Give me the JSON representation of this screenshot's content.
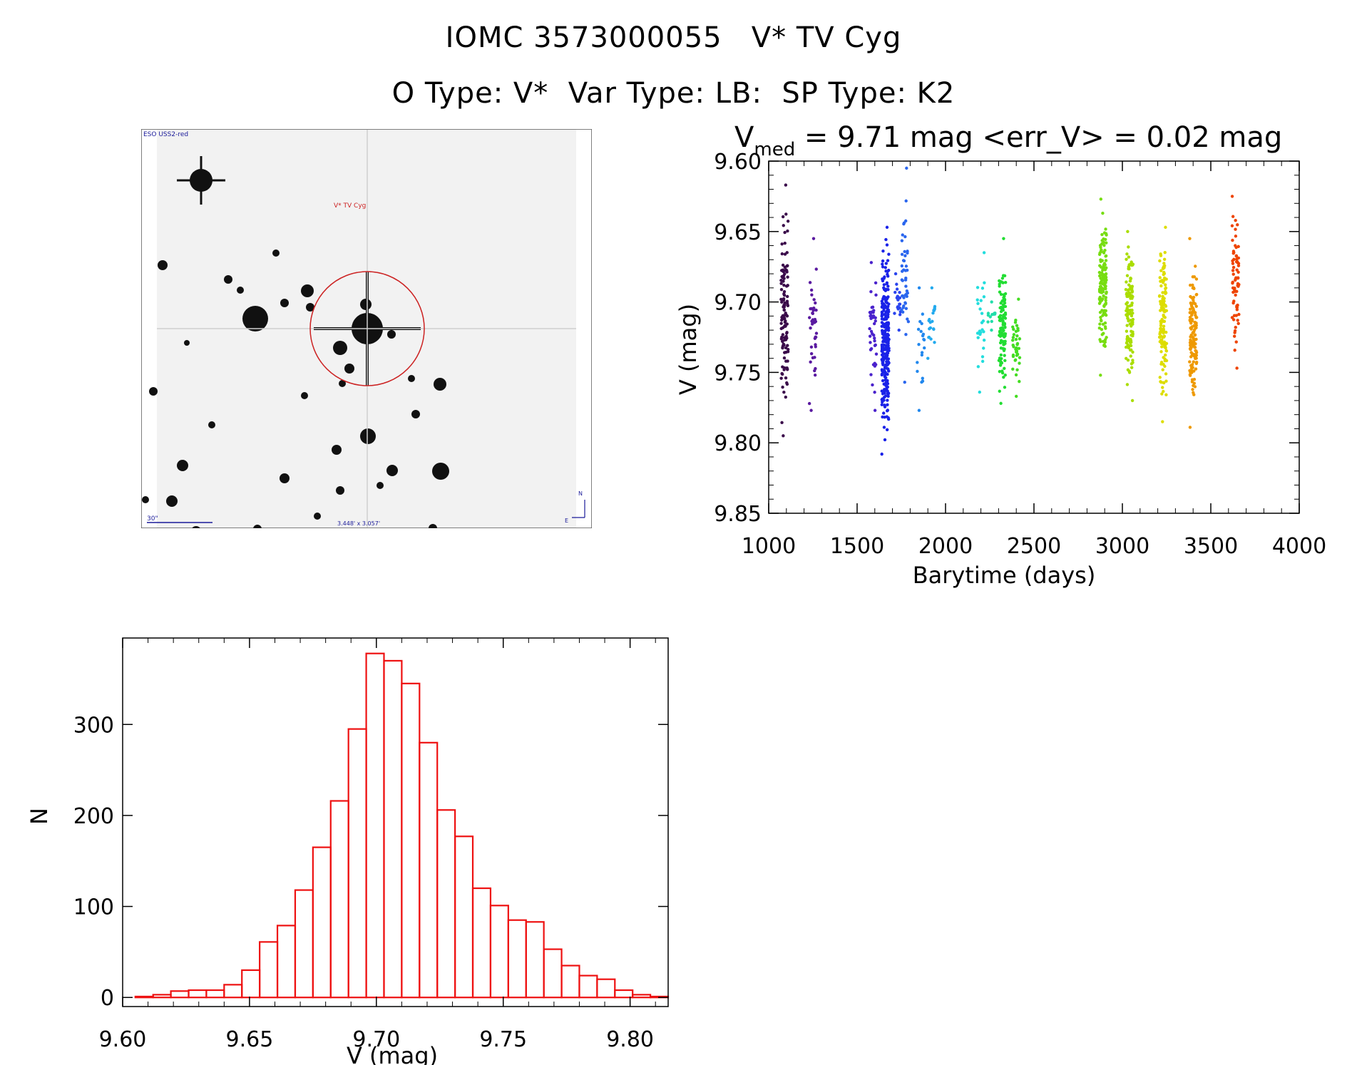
{
  "header": {
    "title": "IOMC 3573000055   V* TV Cyg",
    "subtitle": "O Type: V*  Var Type: LB:  SP Type: K2"
  },
  "finder": {
    "survey_label": "ESO USS2-red",
    "target_label": "V* TV Cyg",
    "scale_label": "30\"",
    "size_label": "3.448' x 3.057'",
    "north_label": "N",
    "east_label": "E",
    "colors": {
      "background": "#f2f2f2",
      "star": "#111111",
      "circle": "#cc2222",
      "labels": "#1a1a99",
      "target_label": "#cc2222"
    }
  },
  "chart_data": [
    {
      "type": "scatter",
      "title_main": "V",
      "title_sub": "med",
      "title_rest": " = 9.71 mag <err_V> = 0.02 mag",
      "xlabel": "Barytime (days)",
      "ylabel": "V (mag)",
      "xlim": [
        1000,
        4000
      ],
      "ylim": [
        9.85,
        9.6
      ],
      "x_ticks": [
        "1000",
        "1500",
        "2000",
        "2500",
        "3000",
        "3500",
        "4000"
      ],
      "y_ticks": [
        "9.60",
        "9.65",
        "9.70",
        "9.75",
        "9.80",
        "9.85"
      ],
      "y_reversed": true,
      "groups": [
        {
          "x": 1090,
          "ymin": 9.617,
          "ymax": 9.795,
          "color": "#3a0a4a",
          "n": 120
        },
        {
          "x": 1250,
          "ymin": 9.655,
          "ymax": 9.777,
          "color": "#5a1aa0",
          "n": 40
        },
        {
          "x": 1590,
          "ymin": 9.672,
          "ymax": 9.777,
          "color": "#4a22cc",
          "n": 40
        },
        {
          "x": 1660,
          "ymin": 9.647,
          "ymax": 9.808,
          "color": "#1a22e8",
          "n": 260
        },
        {
          "x": 1730,
          "ymin": 9.68,
          "ymax": 9.72,
          "color": "#2a44ee",
          "n": 20
        },
        {
          "x": 1770,
          "ymin": 9.605,
          "ymax": 9.757,
          "color": "#2a66ee",
          "n": 45
        },
        {
          "x": 1860,
          "ymin": 9.69,
          "ymax": 9.777,
          "color": "#2288ee",
          "n": 20
        },
        {
          "x": 1920,
          "ymin": 9.69,
          "ymax": 9.74,
          "color": "#22aaee",
          "n": 20
        },
        {
          "x": 2200,
          "ymin": 9.665,
          "ymax": 9.764,
          "color": "#22dddd",
          "n": 25
        },
        {
          "x": 2260,
          "ymin": 9.7,
          "ymax": 9.72,
          "color": "#22ddaa",
          "n": 12
        },
        {
          "x": 2320,
          "ymin": 9.655,
          "ymax": 9.772,
          "color": "#22dd33",
          "n": 110
        },
        {
          "x": 2400,
          "ymin": 9.698,
          "ymax": 9.767,
          "color": "#44dd22",
          "n": 40
        },
        {
          "x": 2890,
          "ymin": 9.627,
          "ymax": 9.752,
          "color": "#77dd11",
          "n": 140
        },
        {
          "x": 3040,
          "ymin": 9.65,
          "ymax": 9.77,
          "color": "#aadd00",
          "n": 130
        },
        {
          "x": 3230,
          "ymin": 9.647,
          "ymax": 9.785,
          "color": "#dddd00",
          "n": 130
        },
        {
          "x": 3400,
          "ymin": 9.655,
          "ymax": 9.789,
          "color": "#ee9900",
          "n": 130
        },
        {
          "x": 3640,
          "ymin": 9.625,
          "ymax": 9.747,
          "color": "#ee4400",
          "n": 70
        }
      ]
    },
    {
      "type": "bar",
      "style": "step-histogram",
      "xlabel": "V (mag)",
      "ylabel": "N",
      "xlim": [
        9.6,
        9.815
      ],
      "ylim": [
        -10,
        395
      ],
      "x_ticks": [
        "9.60",
        "9.65",
        "9.70",
        "9.75",
        "9.80"
      ],
      "y_ticks": [
        "0",
        "100",
        "200",
        "300"
      ],
      "bin_width": 0.007,
      "bin_starts": [
        9.605,
        9.612,
        9.619,
        9.626,
        9.633,
        9.64,
        9.647,
        9.654,
        9.661,
        9.668,
        9.675,
        9.682,
        9.689,
        9.696,
        9.703,
        9.71,
        9.717,
        9.724,
        9.731,
        9.738,
        9.745,
        9.752,
        9.759,
        9.766,
        9.773,
        9.78,
        9.787,
        9.794,
        9.801,
        9.808
      ],
      "values": [
        1,
        3,
        7,
        8,
        8,
        14,
        30,
        61,
        79,
        118,
        165,
        216,
        295,
        378,
        370,
        345,
        280,
        206,
        177,
        120,
        101,
        85,
        83,
        53,
        35,
        24,
        20,
        8,
        3,
        1
      ],
      "color": "#ee1111"
    }
  ]
}
